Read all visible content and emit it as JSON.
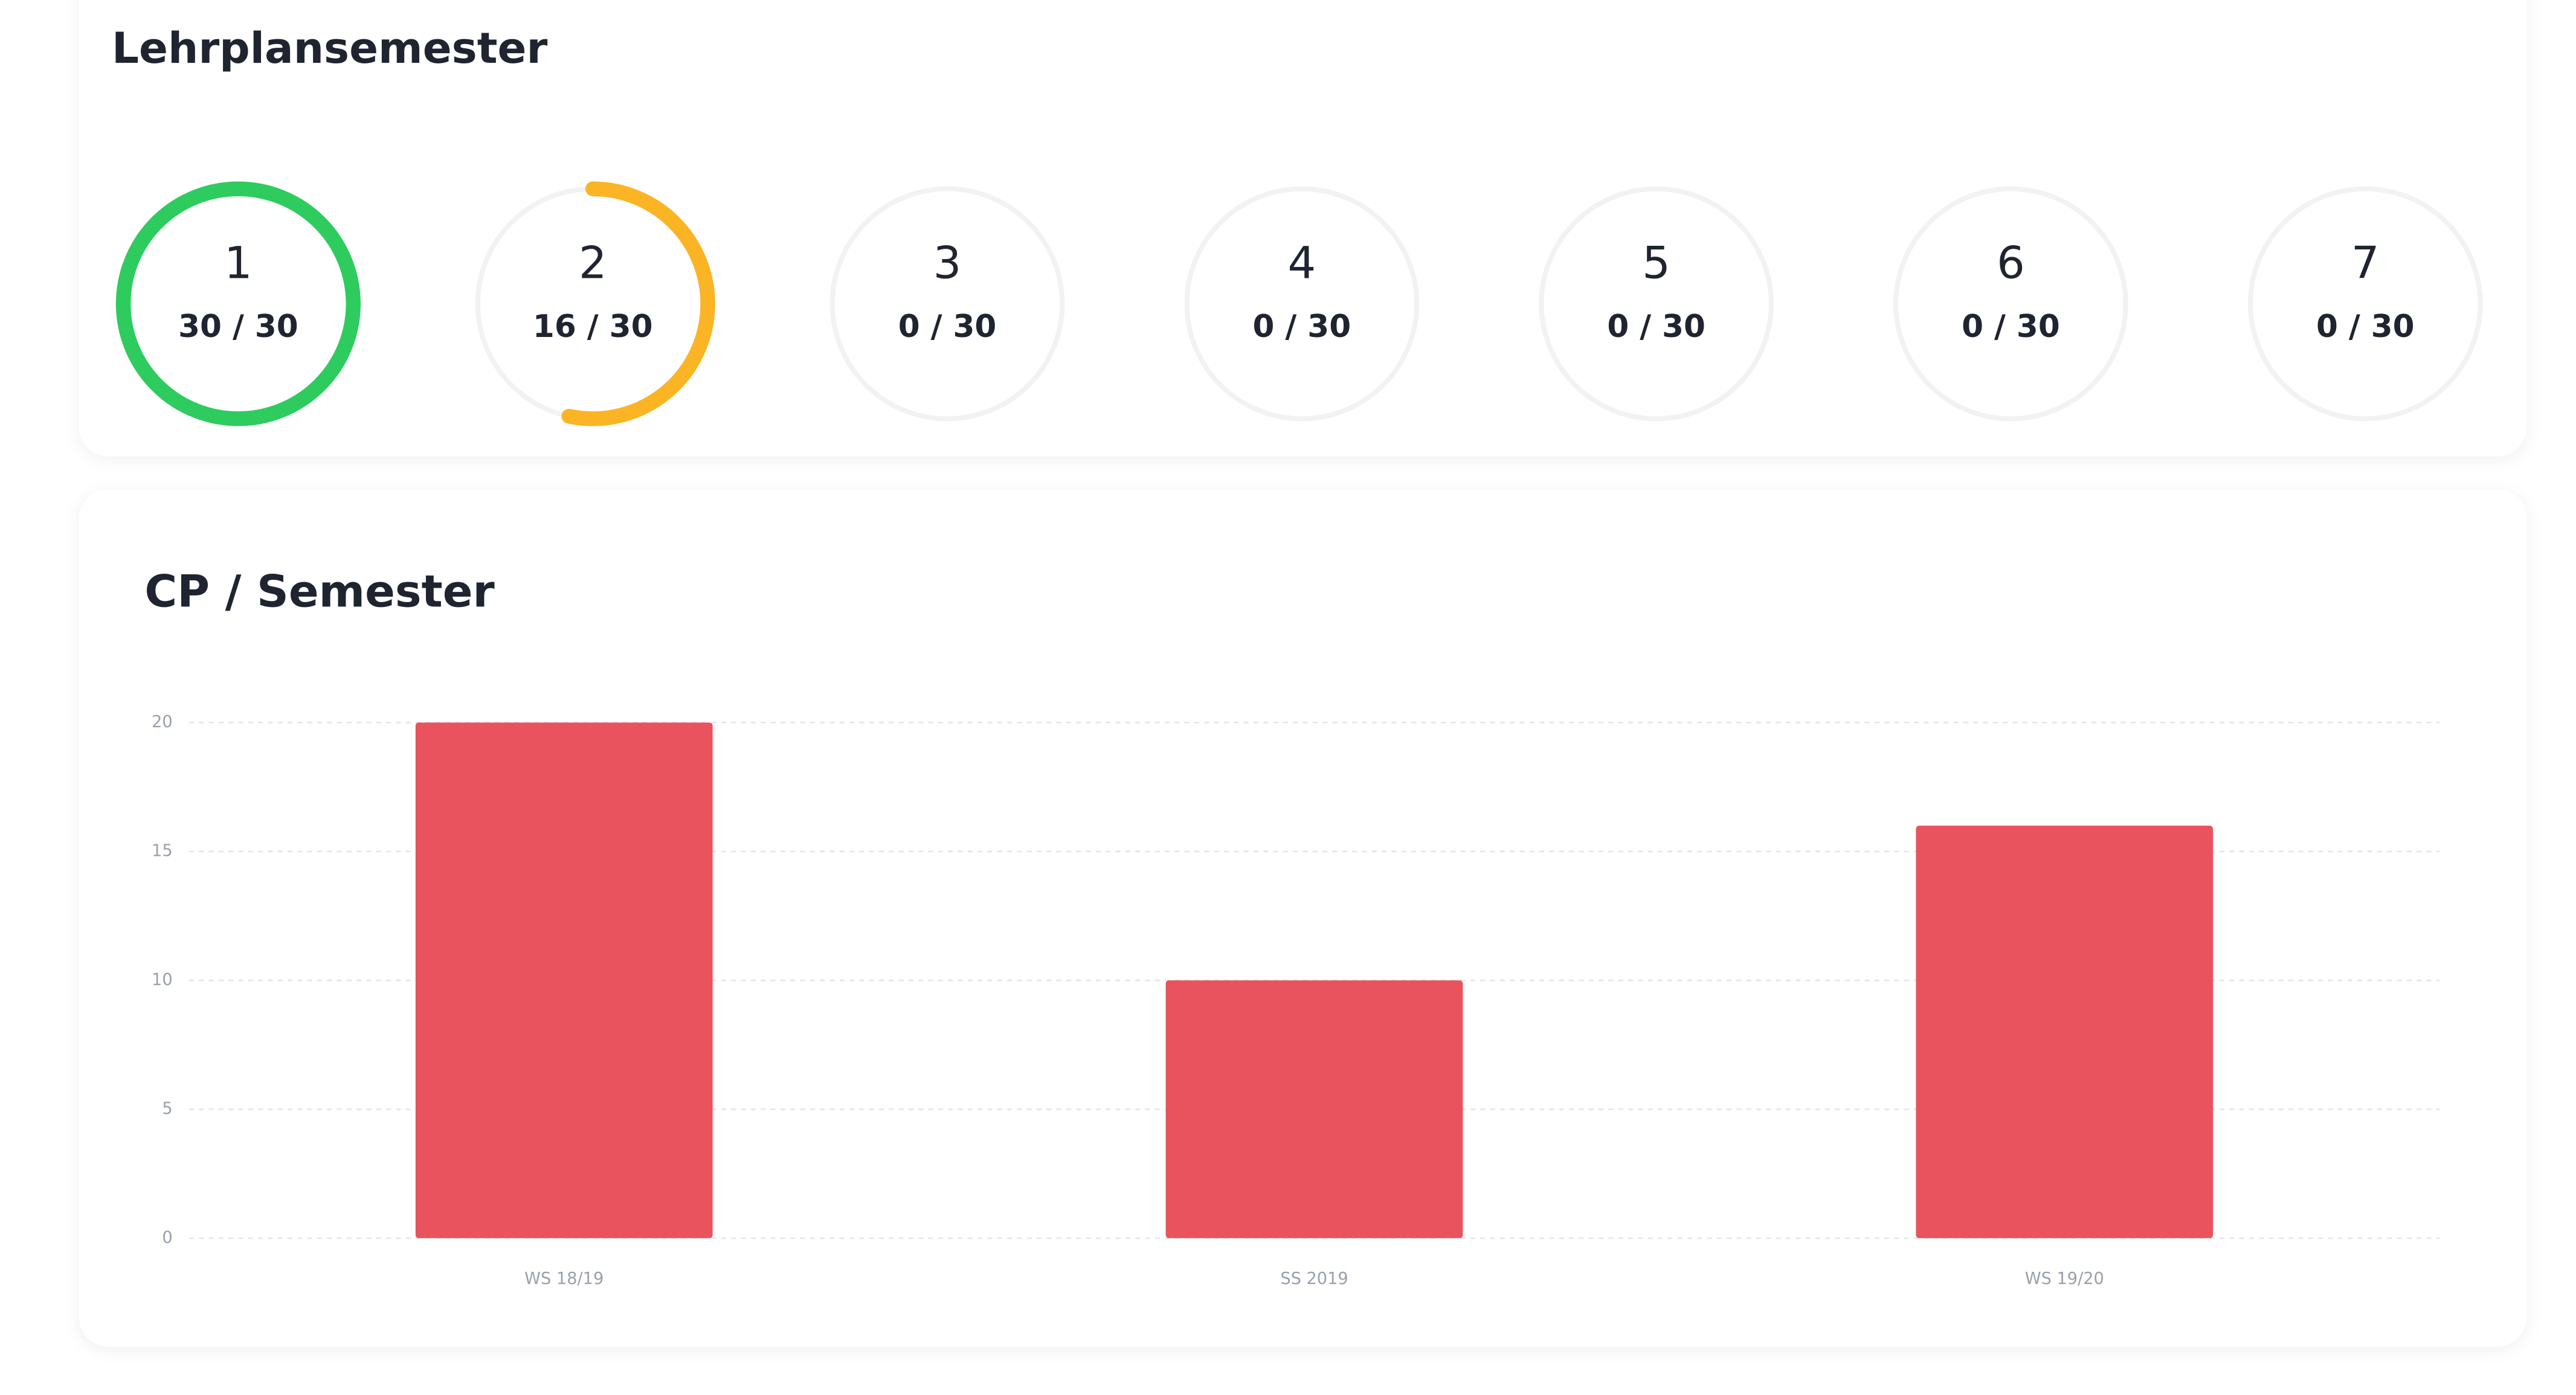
{
  "panel_title": "Lehrplansemester",
  "semesters": [
    {
      "label": "1",
      "text": "30 / 30",
      "value": 30,
      "max": 30,
      "color": "#2ecc5f"
    },
    {
      "label": "2",
      "text": "16 / 30",
      "value": 16,
      "max": 30,
      "color": "#fbb424"
    },
    {
      "label": "3",
      "text": "0 / 30",
      "value": 0,
      "max": 30,
      "color": "#fbb424"
    },
    {
      "label": "4",
      "text": "0 / 30",
      "value": 0,
      "max": 30,
      "color": "#fbb424"
    },
    {
      "label": "5",
      "text": "0 / 30",
      "value": 0,
      "max": 30,
      "color": "#fbb424"
    },
    {
      "label": "6",
      "text": "0 / 30",
      "value": 0,
      "max": 30,
      "color": "#fbb424"
    },
    {
      "label": "7",
      "text": "0 / 30",
      "value": 0,
      "max": 30,
      "color": "#fbb424"
    }
  ],
  "chart_data": {
    "type": "bar",
    "title": "CP / Semester",
    "categories": [
      "WS 18/19",
      "SS 2019",
      "WS 19/20"
    ],
    "values": [
      20,
      10,
      16
    ],
    "color": "#e8535d",
    "ylim": [
      0,
      20
    ],
    "yticks": [
      0,
      5,
      10,
      15,
      20
    ],
    "grid": true
  }
}
